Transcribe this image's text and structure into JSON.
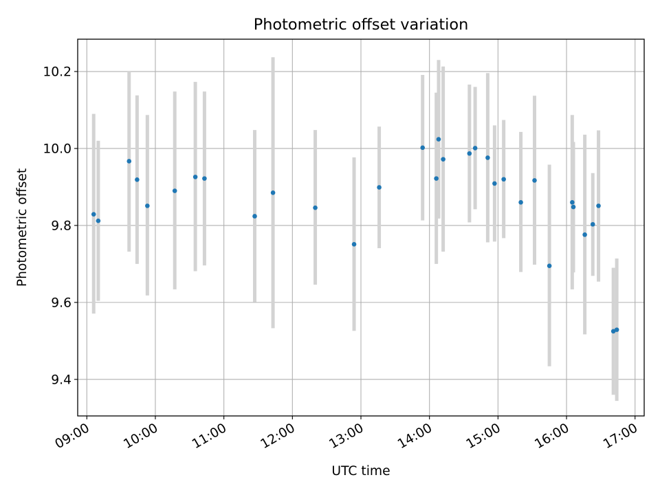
{
  "chart_data": {
    "type": "scatter",
    "title": "Photometric offset variation",
    "xlabel": "UTC time",
    "ylabel": "Photometric offset",
    "x_unit": "HH:MM",
    "xlim": [
      "08:52",
      "17:08"
    ],
    "ylim": [
      9.305,
      10.284
    ],
    "x_ticks": [
      "09:00",
      "10:00",
      "11:00",
      "12:00",
      "13:00",
      "14:00",
      "15:00",
      "16:00",
      "17:00"
    ],
    "y_ticks": [
      9.4,
      9.6,
      9.8,
      10.0,
      10.2
    ],
    "grid": true,
    "marker_color": "#1f77b4",
    "errorbar_color": "#d3d3d3",
    "points": [
      {
        "time": "09:06",
        "value": 9.829,
        "low": 9.571,
        "high": 10.09
      },
      {
        "time": "09:10",
        "value": 9.812,
        "low": 9.604,
        "high": 10.02
      },
      {
        "time": "09:37",
        "value": 9.967,
        "low": 9.732,
        "high": 10.2
      },
      {
        "time": "09:44",
        "value": 9.919,
        "low": 9.7,
        "high": 10.138
      },
      {
        "time": "09:53",
        "value": 9.851,
        "low": 9.618,
        "high": 10.087
      },
      {
        "time": "10:17",
        "value": 9.89,
        "low": 9.634,
        "high": 10.148
      },
      {
        "time": "10:35",
        "value": 9.926,
        "low": 9.681,
        "high": 10.173
      },
      {
        "time": "10:43",
        "value": 9.922,
        "low": 9.696,
        "high": 10.148
      },
      {
        "time": "11:27",
        "value": 9.824,
        "low": 9.601,
        "high": 10.048
      },
      {
        "time": "11:43",
        "value": 9.885,
        "low": 9.533,
        "high": 10.237
      },
      {
        "time": "12:20",
        "value": 9.846,
        "low": 9.646,
        "high": 10.048
      },
      {
        "time": "12:54",
        "value": 9.751,
        "low": 9.526,
        "high": 9.977
      },
      {
        "time": "13:16",
        "value": 9.899,
        "low": 9.741,
        "high": 10.057
      },
      {
        "time": "13:54",
        "value": 10.002,
        "low": 9.813,
        "high": 10.191
      },
      {
        "time": "14:06",
        "value": 9.922,
        "low": 9.7,
        "high": 10.145
      },
      {
        "time": "14:08",
        "value": 10.024,
        "low": 9.818,
        "high": 10.23
      },
      {
        "time": "14:12",
        "value": 9.972,
        "low": 9.732,
        "high": 10.213
      },
      {
        "time": "14:35",
        "value": 9.987,
        "low": 9.808,
        "high": 10.166
      },
      {
        "time": "14:40",
        "value": 10.001,
        "low": 9.842,
        "high": 10.16
      },
      {
        "time": "14:51",
        "value": 9.976,
        "low": 9.756,
        "high": 10.196
      },
      {
        "time": "14:57",
        "value": 9.909,
        "low": 9.758,
        "high": 10.06
      },
      {
        "time": "15:05",
        "value": 9.92,
        "low": 9.767,
        "high": 10.074
      },
      {
        "time": "15:20",
        "value": 9.86,
        "low": 9.679,
        "high": 10.043
      },
      {
        "time": "15:32",
        "value": 9.917,
        "low": 9.698,
        "high": 10.137
      },
      {
        "time": "15:45",
        "value": 9.695,
        "low": 9.434,
        "high": 9.958
      },
      {
        "time": "16:05",
        "value": 9.86,
        "low": 9.634,
        "high": 10.087
      },
      {
        "time": "16:06",
        "value": 9.848,
        "low": 9.678,
        "high": 10.017
      },
      {
        "time": "16:16",
        "value": 9.776,
        "low": 9.517,
        "high": 10.036
      },
      {
        "time": "16:23",
        "value": 9.803,
        "low": 9.669,
        "high": 9.936
      },
      {
        "time": "16:28",
        "value": 9.851,
        "low": 9.654,
        "high": 10.047
      },
      {
        "time": "16:41",
        "value": 9.525,
        "low": 9.36,
        "high": 9.69
      },
      {
        "time": "16:44",
        "value": 9.529,
        "low": 9.344,
        "high": 9.714
      }
    ]
  }
}
